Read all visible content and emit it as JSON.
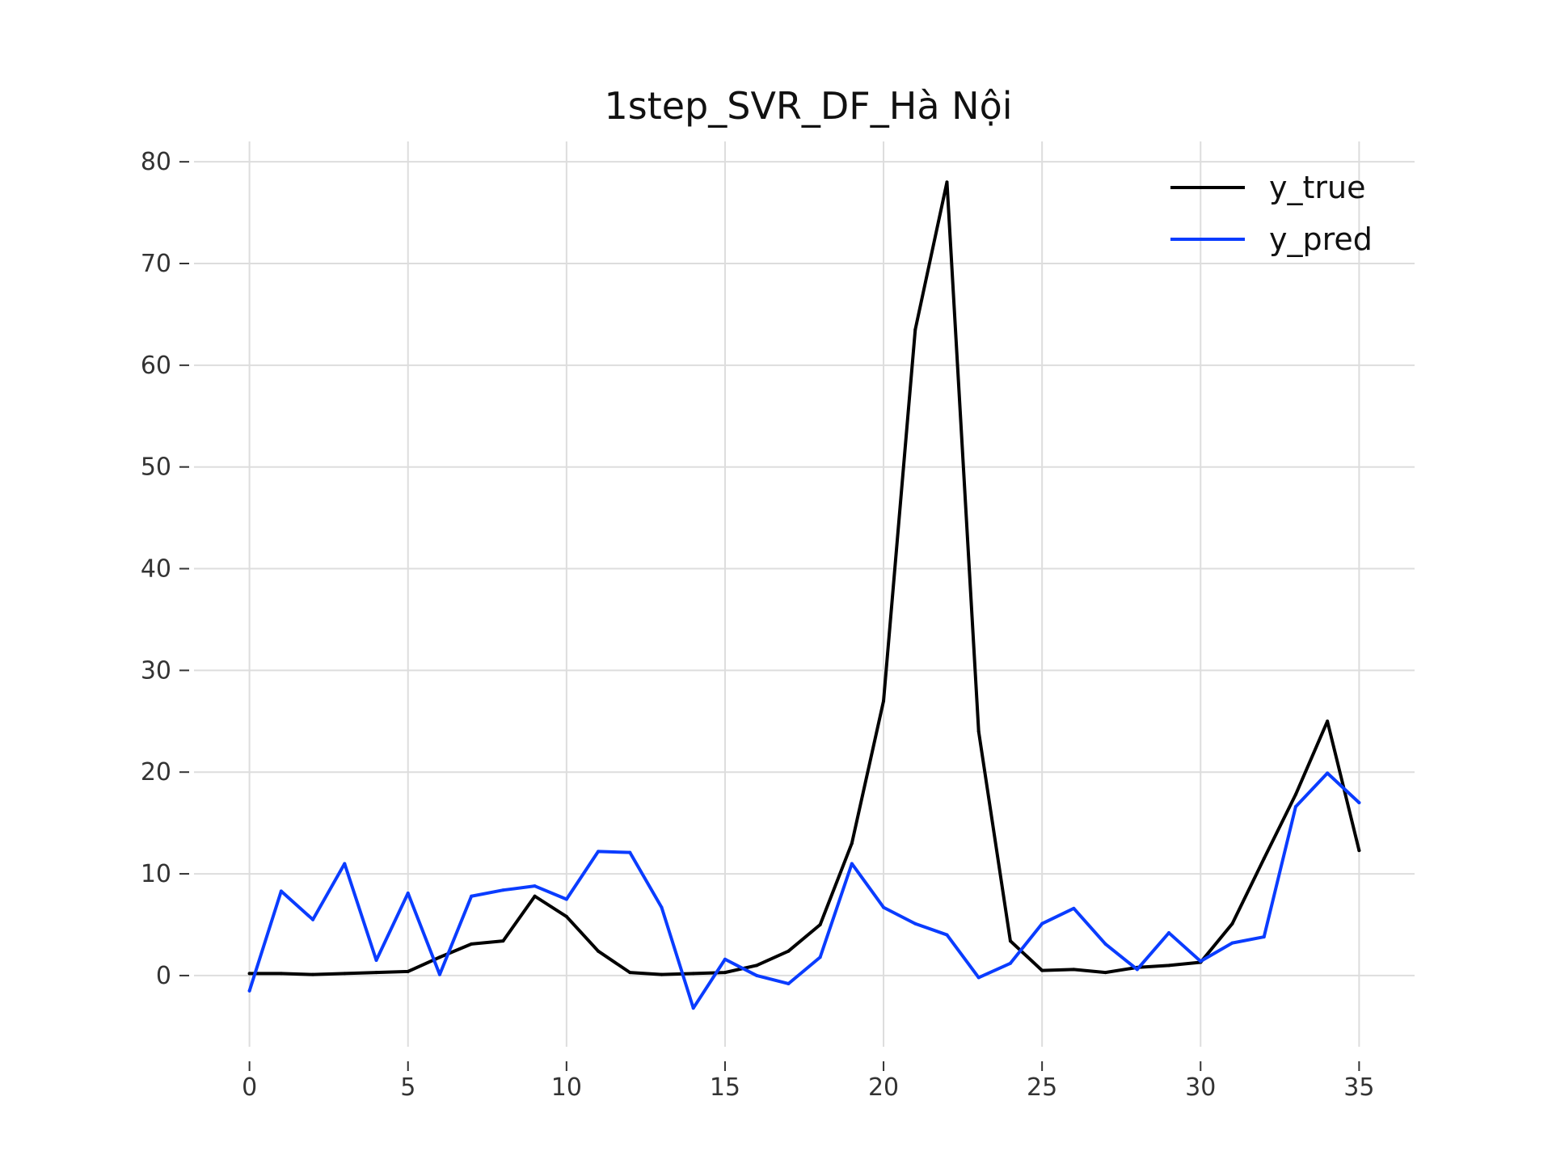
{
  "chart_data": {
    "type": "line",
    "title": "1step_SVR_DF_Hà Nội",
    "xlabel": "",
    "ylabel": "",
    "xlim": [
      -1.75,
      36.75
    ],
    "ylim": [
      -7,
      82
    ],
    "grid": true,
    "legend_position": "top-right",
    "x_ticks": [
      0,
      5,
      10,
      15,
      20,
      25,
      30,
      35
    ],
    "y_ticks": [
      0,
      10,
      20,
      30,
      40,
      50,
      60,
      70,
      80
    ],
    "x": [
      0,
      1,
      2,
      3,
      4,
      5,
      6,
      7,
      8,
      9,
      10,
      11,
      12,
      13,
      14,
      15,
      16,
      17,
      18,
      19,
      20,
      21,
      22,
      23,
      24,
      25,
      26,
      27,
      28,
      29,
      30,
      31,
      32,
      33,
      34,
      35
    ],
    "series": [
      {
        "name": "y_true",
        "color": "#000000",
        "values": [
          0.2,
          0.2,
          0.1,
          0.2,
          0.3,
          0.4,
          1.8,
          3.1,
          3.4,
          7.8,
          5.8,
          2.4,
          0.3,
          0.1,
          0.2,
          0.3,
          1.0,
          2.4,
          5.0,
          13.0,
          27.0,
          63.5,
          78.0,
          24.0,
          3.4,
          0.5,
          0.6,
          0.3,
          0.8,
          1.0,
          1.3,
          5.1,
          11.5,
          17.8,
          25.0,
          12.3
        ]
      },
      {
        "name": "y_pred",
        "color": "#0a3cff",
        "values": [
          -1.5,
          8.3,
          5.5,
          11.0,
          1.5,
          8.1,
          0.1,
          7.8,
          8.4,
          8.8,
          7.5,
          12.2,
          12.1,
          6.7,
          -3.2,
          1.6,
          0.0,
          -0.8,
          1.8,
          11.0,
          6.7,
          5.1,
          4.0,
          -0.2,
          1.2,
          5.1,
          6.6,
          3.1,
          0.6,
          4.2,
          1.4,
          3.2,
          3.8,
          16.6,
          19.9,
          17.0
        ]
      }
    ]
  }
}
